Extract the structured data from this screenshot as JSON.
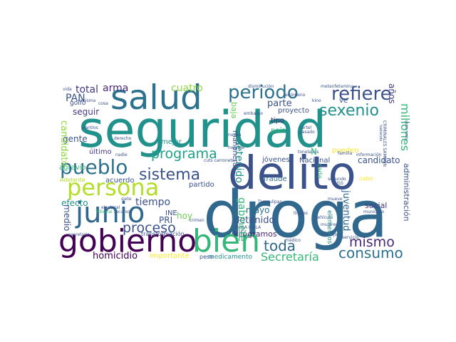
{
  "words": [
    {
      "text": "seguridad",
      "color": "#21918c"
    },
    {
      "text": "delito",
      "color": "#3b528b"
    },
    {
      "text": "droga",
      "color": "#31688e"
    },
    {
      "text": "salud",
      "color": "#2c728e"
    },
    {
      "text": "gobierno",
      "color": "#440154"
    },
    {
      "text": "persona",
      "color": "#b5de2b"
    },
    {
      "text": "bien",
      "color": "#35b779"
    },
    {
      "text": "junio",
      "color": "#31688e"
    },
    {
      "text": "pueblo",
      "color": "#2c728e"
    },
    {
      "text": "periodo",
      "color": "#2c728e"
    },
    {
      "text": "refiere",
      "color": "#3b528b"
    },
    {
      "text": "sexenio",
      "color": "#21918c"
    },
    {
      "text": "programa",
      "color": "#1fa088"
    },
    {
      "text": "sistema",
      "color": "#3b528b"
    },
    {
      "text": "proceso",
      "color": "#3b528b"
    },
    {
      "text": "consumo",
      "color": "#2c728e"
    },
    {
      "text": "toda",
      "color": "#31688e"
    },
    {
      "text": "mismo",
      "color": "#482878"
    },
    {
      "text": "Secretaría",
      "color": "#35b779"
    },
    {
      "text": "homicidio",
      "color": "#440154"
    },
    {
      "text": "tiempo",
      "color": "#3b528b"
    },
    {
      "text": "cuatro",
      "color": "#8fd744"
    },
    {
      "text": "total",
      "color": "#443983"
    },
    {
      "text": "arma",
      "color": "#482878"
    },
    {
      "text": "PAN",
      "color": "#3b528b"
    },
    {
      "text": "seguir",
      "color": "#443983"
    },
    {
      "text": "parte",
      "color": "#3b528b"
    },
    {
      "text": "detenido",
      "color": "#21918c"
    },
    {
      "text": "mayo",
      "color": "#3b528b"
    },
    {
      "text": "hoy",
      "color": "#2c728e"
    },
    {
      "text": "efecto",
      "color": "#6ece58"
    },
    {
      "text": "gente",
      "color": "#21918c"
    },
    {
      "text": "cinco",
      "color": "#3b528b"
    },
    {
      "text": "candidato",
      "color": "#8fd744"
    },
    {
      "text": "millones",
      "color": "#35b779"
    },
    {
      "text": "años",
      "color": "#443983"
    },
    {
      "text": "momento",
      "color": "#3b528b"
    },
    {
      "text": "juventud",
      "color": "#31688e"
    },
    {
      "text": "gabinete",
      "color": "#35b779"
    },
    {
      "text": "kilógramos",
      "color": "#482878"
    },
    {
      "text": "PRI",
      "color": "#3b528b"
    },
    {
      "text": "INE",
      "color": "#3b528b"
    },
    {
      "text": "medio",
      "color": "#3b528b"
    },
    {
      "text": "jóvenes",
      "color": "#3b528b"
    },
    {
      "text": "Nacional",
      "color": "#3b528b"
    },
    {
      "text": "social",
      "color": "#443983"
    },
    {
      "text": "administración",
      "color": "#3b528b"
    },
    {
      "text": "importante",
      "color": "#fde725"
    },
    {
      "text": "acuerdo",
      "color": "#3b528b"
    },
    {
      "text": "partido",
      "color": "#3b528b"
    },
    {
      "text": "mejor",
      "color": "#21918c"
    },
    {
      "text": "último",
      "color": "#443983"
    },
    {
      "text": "agravio",
      "color": "#35b779"
    },
    {
      "text": "baja",
      "color": "#6ece58"
    },
    {
      "text": "mañanera",
      "color": "#3b528b"
    },
    {
      "text": "proyecto",
      "color": "#3b528b"
    },
    {
      "text": "tipo",
      "color": "#482878"
    },
    {
      "text": "país",
      "color": "#35b779"
    },
    {
      "text": "fraude",
      "color": "#31688e"
    },
    {
      "text": "pueden",
      "color": "#fde725"
    },
    {
      "text": "cada",
      "color": "#35b779"
    },
    {
      "text": "medicamento",
      "color": "#21918c"
    },
    {
      "text": "elementos",
      "color": "#21918c"
    },
    {
      "text": "transformación",
      "color": "#3b528b"
    },
    {
      "text": "peso",
      "color": "#3b528b"
    },
    {
      "text": "golfo",
      "color": "#3b528b"
    },
    {
      "text": "plantíos",
      "color": "#3b528b"
    },
    {
      "text": "vida",
      "color": "#3b528b"
    },
    {
      "text": "derecho",
      "color": "#3b528b"
    },
    {
      "text": "Adelante",
      "color": "#b5de2b"
    },
    {
      "text": "secretario",
      "color": "#3b528b"
    },
    {
      "text": "disminución",
      "color": "#3b528b"
    },
    {
      "text": "metanfetamina",
      "color": "#3b528b"
    },
    {
      "text": "información",
      "color": "#3b528b"
    },
    {
      "text": "municipio",
      "color": "#3b528b"
    },
    {
      "text": "servicio",
      "color": "#3b528b"
    },
    {
      "text": "límites",
      "color": "#3b528b"
    },
    {
      "text": "ROSA ICELA",
      "color": "#3b528b"
    },
    {
      "text": "cabo",
      "color": "#fde725"
    },
    {
      "text": "cártel",
      "color": "#3b528b"
    },
    {
      "text": "INSS",
      "color": "#3b528b"
    },
    {
      "text": "mujeres",
      "color": "#3b528b"
    },
    {
      "text": "segundo",
      "color": "#3b528b"
    },
    {
      "text": "pasado",
      "color": "#3b528b"
    },
    {
      "text": "familia",
      "color": "#3b528b"
    },
    {
      "text": "toneladas",
      "color": "#3b528b"
    },
    {
      "text": "nueva",
      "color": "#3b528b"
    },
    {
      "text": "embargo",
      "color": "#3b528b"
    },
    {
      "text": "vez",
      "color": "#3b528b"
    },
    {
      "text": "ve",
      "color": "#3b528b"
    },
    {
      "text": "N",
      "color": "#35b779"
    },
    {
      "text": "nadie",
      "color": "#3b528b"
    },
    {
      "text": "siete",
      "color": "#3b528b"
    },
    {
      "text": "electoral",
      "color": "#3b528b"
    },
    {
      "text": "Tribunal",
      "color": "#35b779"
    },
    {
      "text": "recursos",
      "color": "#3b528b"
    },
    {
      "text": "misma",
      "color": "#3b528b"
    },
    {
      "text": "Tamaulipas",
      "color": "#3b528b"
    },
    {
      "text": "fenómeno",
      "color": "#3b528b"
    },
    {
      "text": "kino",
      "color": "#3b528b"
    },
    {
      "text": "crimen",
      "color": "#3b528b"
    },
    {
      "text": "vehículo",
      "color": "#3b528b"
    },
    {
      "text": "hombre",
      "color": "#3b528b"
    },
    {
      "text": "trabajo",
      "color": "#3b528b"
    },
    {
      "text": "mueve",
      "color": "#3b528b"
    },
    {
      "text": "cosa",
      "color": "#3b528b"
    },
    {
      "text": "médico",
      "color": "#3b528b"
    },
    {
      "text": "seis",
      "color": "#3b528b"
    },
    {
      "text": "gobernador",
      "color": "#3b528b"
    },
    {
      "text": "CRIMINALES SAMBON",
      "color": "#3b528b"
    },
    {
      "text": "hablando",
      "color": "#3b528b"
    },
    {
      "text": "Estado",
      "color": "#3b528b"
    },
    {
      "text": "Mejor",
      "color": "#3b528b"
    },
    {
      "text": "claro",
      "color": "#3b528b"
    },
    {
      "text": "resto",
      "color": "#3b528b"
    },
    {
      "text": "frontera",
      "color": "#3b528b"
    },
    {
      "text": "hecho",
      "color": "#3b528b"
    },
    {
      "text": "cuts carroneto",
      "color": "#3b528b"
    },
    {
      "text": "lesivo",
      "color": "#3b528b"
    },
    {
      "text": "escrito",
      "color": "#3b528b"
    },
    {
      "text": "vecino",
      "color": "#3b528b"
    },
    {
      "text": "ciclo",
      "color": "#3b528b"
    }
  ]
}
